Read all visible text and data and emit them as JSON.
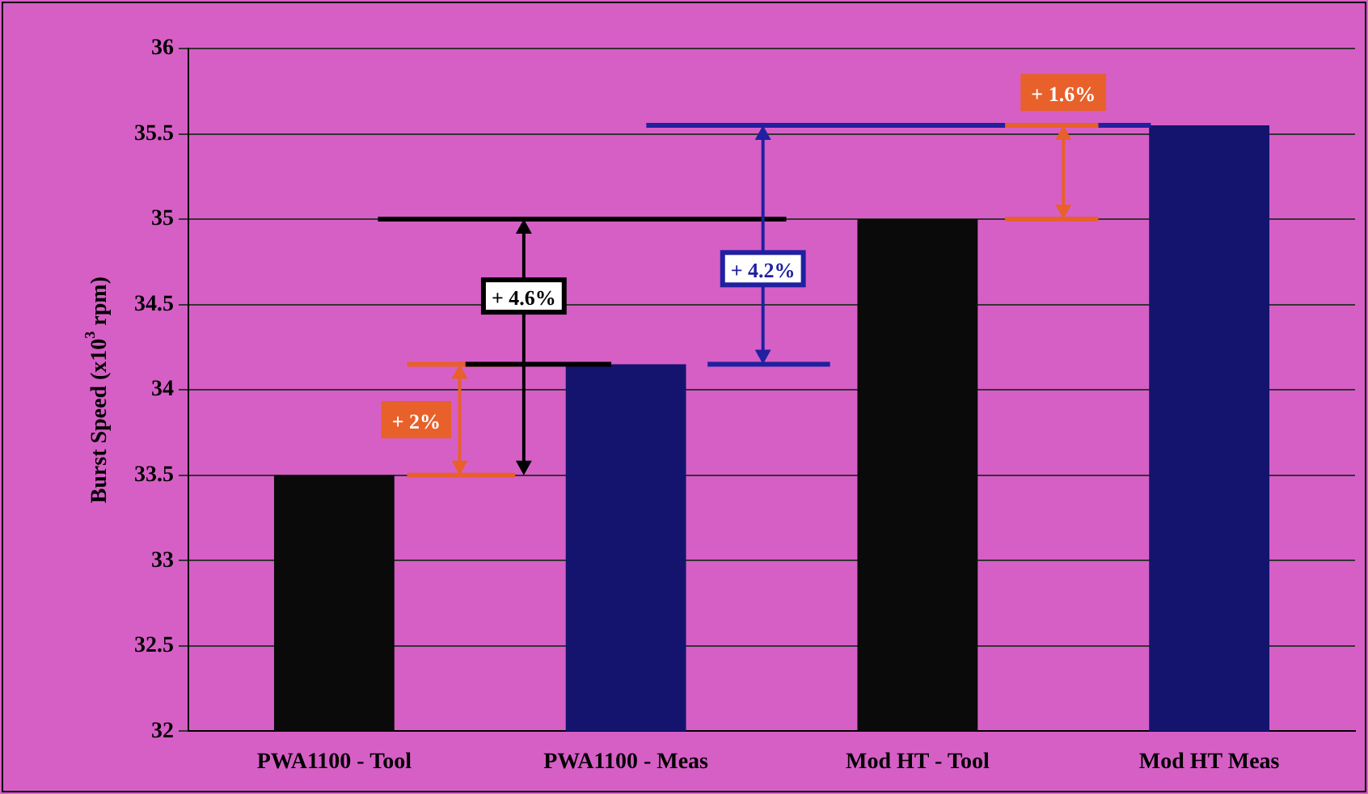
{
  "chart_data": {
    "type": "bar",
    "ylabel": "Burst Speed (x10$^{3}$ rpm)",
    "categories": [
      "PWA1100 - Tool",
      "PWA1100 - Meas",
      "Mod HT - Tool",
      "Mod HT Meas"
    ],
    "values": [
      33.5,
      34.15,
      35,
      35.55
    ],
    "colors": [
      "#0a0a0a",
      "#14146e",
      "#0a0a0a",
      "#14146e"
    ],
    "ylim": [
      32,
      36
    ],
    "yticks": [
      32,
      32.5,
      33,
      33.5,
      34,
      34.5,
      35,
      35.5,
      36
    ],
    "grid": "y",
    "legend": false,
    "ref_lines": [
      {
        "axis": "y",
        "value": 35.55,
        "color": "#2020a0"
      }
    ],
    "annotations": [
      "+ 2%",
      "+ 4.6%",
      "+ 4.2%",
      {
        "text": "+ 1.6%",
        "y": 35.55
      }
    ]
  }
}
